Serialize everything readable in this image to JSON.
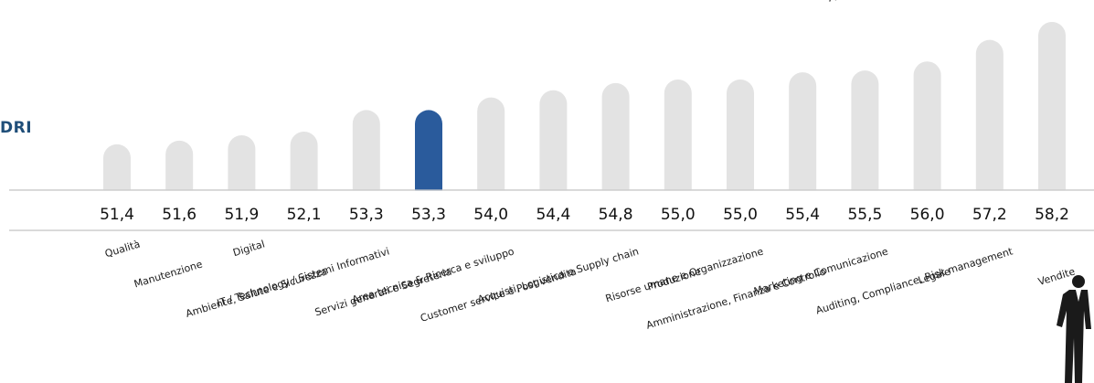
{
  "header": {
    "side_title_fragment": "DRI",
    "top_cutoff_text": "A"
  },
  "chart_data": {
    "type": "bar",
    "title": "",
    "xlabel": "",
    "ylabel": "",
    "highlight_index": 5,
    "colors": {
      "default": "#e3e3e3",
      "highlight": "#2a5b9c",
      "baseline": "#c8c8c8",
      "label": "#111111"
    },
    "categories": [
      "Qualità",
      "Manutenzione",
      "Digital",
      "Ambiente, Salute e Sicurezza",
      "IT / Technology / Sistemi Informativi",
      "Servizi generali e Segreteria",
      "Area tecnica & Ricerca e sviluppo",
      "Customer service e Post vendita",
      "Acquisti, Logistica e Supply chain",
      "Produzione",
      "Risorse umane e Organizzazione",
      "Amministrazione, Finanza e Controllo",
      "Marketing e Comunicazione",
      "Legale",
      "Auditing, Compliance, Risk management",
      "Vendite"
    ],
    "values": [
      51.4,
      51.6,
      51.9,
      52.1,
      53.3,
      53.3,
      54.0,
      54.4,
      54.8,
      55.0,
      55.0,
      55.4,
      55.5,
      56.0,
      57.2,
      58.2
    ],
    "value_labels": [
      "51,4",
      "51,6",
      "51,9",
      "52,1",
      "53,3",
      "53,3",
      "54,0",
      "54,4",
      "54,8",
      "55,0",
      "55,0",
      "55,4",
      "55,5",
      "56,0",
      "57,2",
      "58,2"
    ],
    "bar_label_map": [
      0,
      1,
      2,
      3,
      4,
      5,
      6,
      7,
      8,
      9,
      10,
      11,
      12,
      13,
      14,
      15
    ]
  }
}
